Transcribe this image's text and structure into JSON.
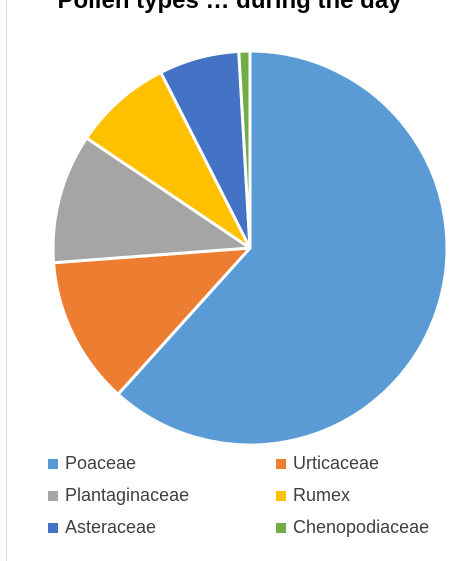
{
  "chart_data": {
    "type": "pie",
    "title": "Pollen types … during the day",
    "categories": [
      "Poaceae",
      "Urticaceae",
      "Plantaginaceae",
      "Rumex",
      "Asteraceae",
      "Chenopodiaceae"
    ],
    "values": [
      61.0,
      12.0,
      10.5,
      8.0,
      6.5,
      0.9
    ],
    "colors": [
      "#5b9bd5",
      "#ed7d31",
      "#a5a5a5",
      "#ffc000",
      "#4472c4",
      "#70ad47"
    ],
    "legend": "bottom",
    "start_angle_deg": 0,
    "direction": "clockwise"
  }
}
